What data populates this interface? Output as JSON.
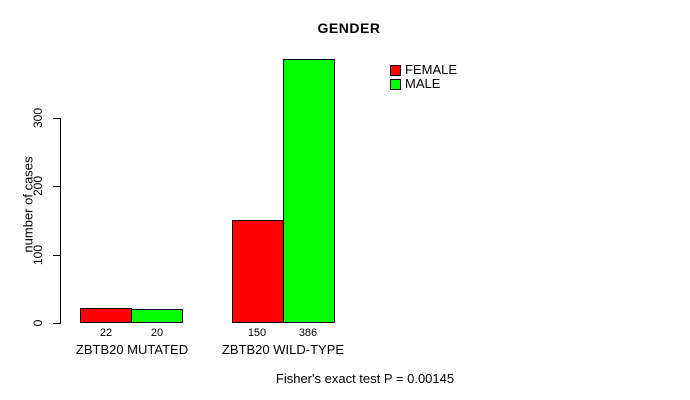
{
  "chart_data": {
    "type": "bar",
    "title": "GENDER",
    "ylabel": "number of cases",
    "xlabel": "",
    "categories": [
      "ZBTB20 MUTATED",
      "ZBTB20 WILD-TYPE"
    ],
    "series": [
      {
        "name": "FEMALE",
        "color": "#ff0000",
        "values": [
          22,
          150
        ]
      },
      {
        "name": "MALE",
        "color": "#00ff00",
        "values": [
          20,
          386
        ]
      }
    ],
    "bar_value_labels": [
      "22",
      "20",
      "150",
      "386"
    ],
    "y_ticks": [
      0,
      100,
      200,
      300
    ],
    "ylim": [
      0,
      386
    ],
    "axis_range_shown": [
      0,
      300
    ],
    "grid": false,
    "legend_position": "top-right",
    "annotation": "Fisher's exact test P = 0.00145",
    "bar_border_color": "#000000"
  }
}
